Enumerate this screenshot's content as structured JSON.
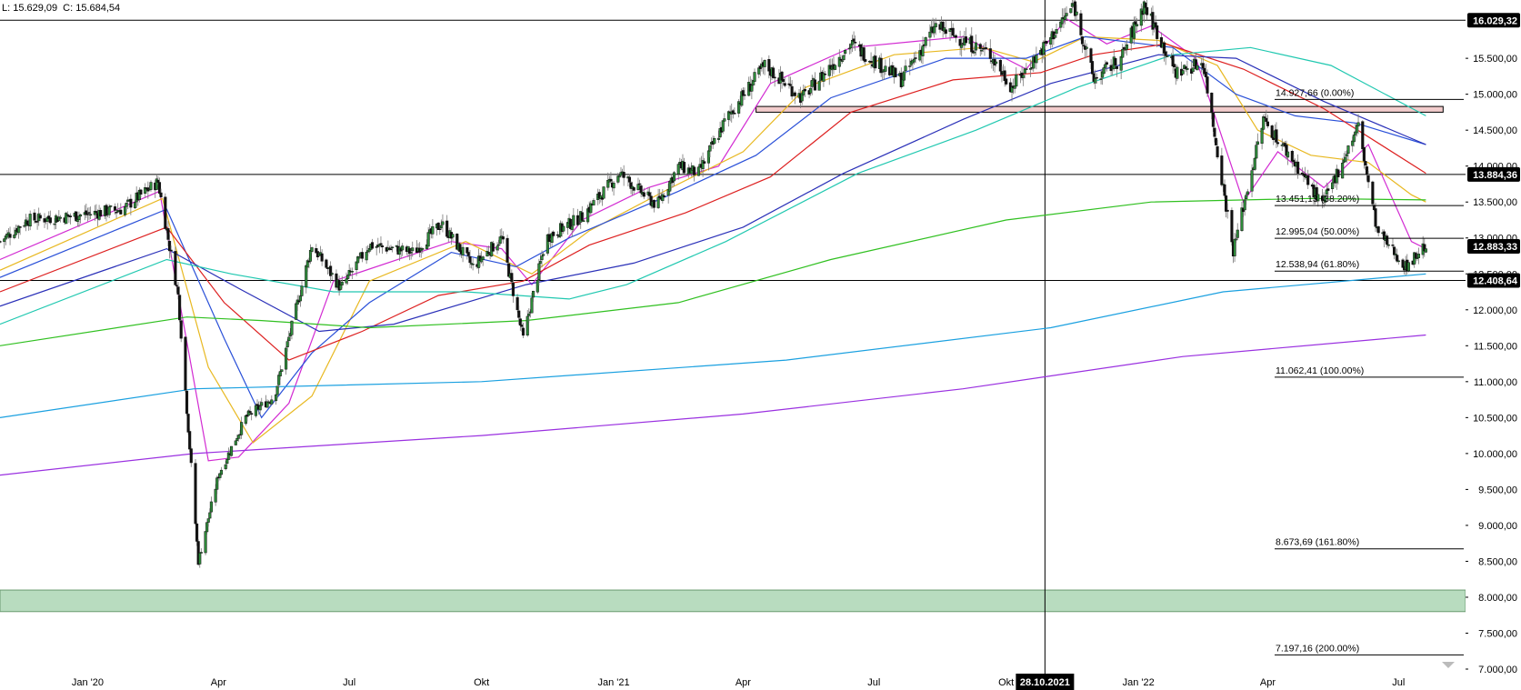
{
  "header": {
    "low": "L: 15.629,09",
    "close": "C: 15.684,54"
  },
  "chart_data": {
    "type": "candlestick",
    "ylim": [
      7000,
      16100
    ],
    "x_range": [
      "2019-11-01",
      "2022-07-28"
    ],
    "y_ticks": [
      7000,
      7500,
      8000,
      8500,
      9000,
      9500,
      10000,
      10500,
      11000,
      11500,
      12000,
      12500,
      13000,
      13500,
      14000,
      14500,
      15000,
      15500
    ],
    "y_tick_labels": [
      "7.000,00",
      "7.500,00",
      "8.000,00",
      "8.500,00",
      "9.000,00",
      "9.500,00",
      "10.000,00",
      "10.500,00",
      "11.000,00",
      "11.500,00",
      "12.000,00",
      "12.500,00",
      "13.000,00",
      "13.500,00",
      "14.000,00",
      "14.500,00",
      "15.000,00",
      "15.500,00"
    ],
    "x_ticks": [
      {
        "date": "2020-01-01",
        "label": "Jan '20"
      },
      {
        "date": "2020-04-01",
        "label": "Apr"
      },
      {
        "date": "2020-07-01",
        "label": "Jul"
      },
      {
        "date": "2020-10-01",
        "label": "Okt"
      },
      {
        "date": "2021-01-01",
        "label": "Jan '21"
      },
      {
        "date": "2021-04-01",
        "label": "Apr"
      },
      {
        "date": "2021-07-01",
        "label": "Jul"
      },
      {
        "date": "2021-10-01",
        "label": "Okt"
      },
      {
        "date": "2022-01-01",
        "label": "Jan '22"
      },
      {
        "date": "2022-04-01",
        "label": "Apr"
      },
      {
        "date": "2022-07-01",
        "label": "Jul"
      }
    ],
    "price_path": [
      [
        "2019-11-01",
        12950
      ],
      [
        "2019-11-20",
        13250
      ],
      [
        "2019-12-20",
        13300
      ],
      [
        "2020-01-25",
        13400
      ],
      [
        "2020-02-19",
        13780
      ],
      [
        "2020-03-04",
        12200
      ],
      [
        "2020-03-18",
        8500
      ],
      [
        "2020-04-01",
        9700
      ],
      [
        "2020-04-20",
        10500
      ],
      [
        "2020-05-10",
        10800
      ],
      [
        "2020-06-05",
        12900
      ],
      [
        "2020-06-25",
        12300
      ],
      [
        "2020-07-15",
        12900
      ],
      [
        "2020-08-15",
        12800
      ],
      [
        "2020-09-03",
        13200
      ],
      [
        "2020-09-25",
        12600
      ],
      [
        "2020-10-15",
        13000
      ],
      [
        "2020-10-30",
        11600
      ],
      [
        "2020-11-15",
        13000
      ],
      [
        "2020-12-10",
        13300
      ],
      [
        "2021-01-05",
        13900
      ],
      [
        "2021-01-31",
        13450
      ],
      [
        "2021-02-15",
        14000
      ],
      [
        "2021-03-01",
        13900
      ],
      [
        "2021-03-20",
        14650
      ],
      [
        "2021-04-16",
        15400
      ],
      [
        "2021-05-12",
        14950
      ],
      [
        "2021-06-15",
        15700
      ],
      [
        "2021-07-20",
        15200
      ],
      [
        "2021-08-13",
        15950
      ],
      [
        "2021-09-20",
        15550
      ],
      [
        "2021-10-05",
        15100
      ],
      [
        "2021-10-29",
        15700
      ],
      [
        "2021-11-17",
        16250
      ],
      [
        "2021-12-01",
        15200
      ],
      [
        "2021-12-20",
        15500
      ],
      [
        "2022-01-05",
        16250
      ],
      [
        "2022-01-27",
        15300
      ],
      [
        "2022-02-15",
        15450
      ],
      [
        "2022-03-08",
        12830
      ],
      [
        "2022-03-29",
        14650
      ],
      [
        "2022-04-25",
        13900
      ],
      [
        "2022-05-09",
        13450
      ],
      [
        "2022-06-03",
        14560
      ],
      [
        "2022-06-16",
        13100
      ],
      [
        "2022-07-06",
        12600
      ],
      [
        "2022-07-20",
        12900
      ]
    ],
    "moving_averages": [
      {
        "color": "#d22ad2",
        "points": [
          [
            "2019-11-01",
            12700
          ],
          [
            "2020-02-20",
            13650
          ],
          [
            "2020-03-25",
            9900
          ],
          [
            "2020-04-15",
            9950
          ],
          [
            "2020-05-20",
            10700
          ],
          [
            "2020-06-20",
            12400
          ],
          [
            "2020-09-10",
            12950
          ],
          [
            "2020-10-15",
            12850
          ],
          [
            "2020-11-05",
            12350
          ],
          [
            "2020-12-10",
            13250
          ],
          [
            "2021-01-25",
            13700
          ],
          [
            "2021-03-15",
            14000
          ],
          [
            "2021-04-20",
            15150
          ],
          [
            "2021-06-15",
            15650
          ],
          [
            "2021-09-01",
            15800
          ],
          [
            "2021-10-15",
            15350
          ],
          [
            "2021-11-12",
            16050
          ],
          [
            "2021-12-10",
            15700
          ],
          [
            "2022-01-10",
            15950
          ],
          [
            "2022-02-10",
            15500
          ],
          [
            "2022-03-15",
            13500
          ],
          [
            "2022-04-08",
            14200
          ],
          [
            "2022-05-10",
            13700
          ],
          [
            "2022-06-10",
            14300
          ],
          [
            "2022-07-10",
            12950
          ],
          [
            "2022-07-20",
            12850
          ]
        ]
      },
      {
        "color": "#e8b820",
        "points": [
          [
            "2019-11-01",
            12550
          ],
          [
            "2020-02-22",
            13550
          ],
          [
            "2020-03-25",
            11200
          ],
          [
            "2020-04-25",
            10150
          ],
          [
            "2020-06-05",
            10800
          ],
          [
            "2020-07-15",
            12400
          ],
          [
            "2020-09-20",
            12950
          ],
          [
            "2020-11-05",
            12500
          ],
          [
            "2020-12-15",
            13100
          ],
          [
            "2021-02-10",
            13700
          ],
          [
            "2021-04-01",
            14200
          ],
          [
            "2021-05-15",
            15100
          ],
          [
            "2021-07-15",
            15550
          ],
          [
            "2021-09-15",
            15650
          ],
          [
            "2021-10-20",
            15450
          ],
          [
            "2021-11-25",
            15800
          ],
          [
            "2022-01-15",
            15750
          ],
          [
            "2022-02-25",
            15400
          ],
          [
            "2022-03-25",
            14500
          ],
          [
            "2022-05-01",
            14150
          ],
          [
            "2022-06-10",
            14050
          ],
          [
            "2022-07-10",
            13600
          ],
          [
            "2022-07-20",
            13500
          ]
        ]
      },
      {
        "color": "#2a50d8",
        "points": [
          [
            "2019-11-01",
            12450
          ],
          [
            "2020-02-25",
            13400
          ],
          [
            "2020-04-05",
            11600
          ],
          [
            "2020-05-01",
            10500
          ],
          [
            "2020-06-05",
            11400
          ],
          [
            "2020-07-15",
            12100
          ],
          [
            "2020-09-10",
            12800
          ],
          [
            "2020-10-25",
            12600
          ],
          [
            "2020-12-01",
            13000
          ],
          [
            "2021-02-15",
            13650
          ],
          [
            "2021-04-10",
            14150
          ],
          [
            "2021-06-01",
            14950
          ],
          [
            "2021-08-20",
            15500
          ],
          [
            "2021-10-15",
            15500
          ],
          [
            "2021-11-25",
            15800
          ],
          [
            "2022-01-25",
            15650
          ],
          [
            "2022-03-10",
            15000
          ],
          [
            "2022-04-20",
            14700
          ],
          [
            "2022-06-01",
            14600
          ],
          [
            "2022-07-20",
            14300
          ]
        ]
      },
      {
        "color": "#dd2020",
        "points": [
          [
            "2019-11-01",
            12250
          ],
          [
            "2020-02-25",
            13150
          ],
          [
            "2020-04-05",
            12100
          ],
          [
            "2020-05-20",
            11300
          ],
          [
            "2020-07-10",
            11700
          ],
          [
            "2020-09-01",
            12200
          ],
          [
            "2020-10-30",
            12400
          ],
          [
            "2020-12-15",
            12900
          ],
          [
            "2021-02-20",
            13350
          ],
          [
            "2021-04-20",
            13850
          ],
          [
            "2021-06-15",
            14750
          ],
          [
            "2021-08-25",
            15200
          ],
          [
            "2021-10-25",
            15300
          ],
          [
            "2021-12-01",
            15550
          ],
          [
            "2022-01-20",
            15700
          ],
          [
            "2022-03-15",
            15350
          ],
          [
            "2022-05-10",
            14800
          ],
          [
            "2022-07-20",
            13900
          ]
        ]
      },
      {
        "color": "#2a30b8",
        "points": [
          [
            "2019-11-01",
            12050
          ],
          [
            "2020-02-25",
            12850
          ],
          [
            "2020-04-15",
            12300
          ],
          [
            "2020-06-10",
            11700
          ],
          [
            "2020-08-01",
            11800
          ],
          [
            "2020-11-01",
            12350
          ],
          [
            "2021-01-15",
            12650
          ],
          [
            "2021-04-01",
            13150
          ],
          [
            "2021-06-10",
            13900
          ],
          [
            "2021-09-01",
            14650
          ],
          [
            "2021-11-01",
            15150
          ],
          [
            "2022-01-15",
            15550
          ],
          [
            "2022-03-10",
            15500
          ],
          [
            "2022-05-10",
            14900
          ],
          [
            "2022-07-20",
            14300
          ]
        ]
      },
      {
        "color": "#20c8b0",
        "points": [
          [
            "2019-11-01",
            11800
          ],
          [
            "2020-02-25",
            12700
          ],
          [
            "2020-04-10",
            12500
          ],
          [
            "2020-06-20",
            12250
          ],
          [
            "2020-09-20",
            12250
          ],
          [
            "2020-12-01",
            12150
          ],
          [
            "2021-01-10",
            12350
          ],
          [
            "2021-03-20",
            12950
          ],
          [
            "2021-06-20",
            13900
          ],
          [
            "2021-09-10",
            14500
          ],
          [
            "2021-11-20",
            15100
          ],
          [
            "2022-01-25",
            15550
          ],
          [
            "2022-03-20",
            15650
          ],
          [
            "2022-05-15",
            15400
          ],
          [
            "2022-07-20",
            14700
          ]
        ]
      },
      {
        "color": "#30c020",
        "points": [
          [
            "2019-11-01",
            11500
          ],
          [
            "2020-03-10",
            11900
          ],
          [
            "2020-05-01",
            11850
          ],
          [
            "2020-07-15",
            11750
          ],
          [
            "2020-11-01",
            11850
          ],
          [
            "2021-02-15",
            12100
          ],
          [
            "2021-06-01",
            12700
          ],
          [
            "2021-10-01",
            13250
          ],
          [
            "2022-01-10",
            13500
          ],
          [
            "2022-05-01",
            13550
          ],
          [
            "2022-07-20",
            13530
          ]
        ]
      },
      {
        "color": "#1aa0e0",
        "points": [
          [
            "2019-11-01",
            10500
          ],
          [
            "2020-03-15",
            10900
          ],
          [
            "2020-10-01",
            11000
          ],
          [
            "2021-05-01",
            11300
          ],
          [
            "2021-11-01",
            11750
          ],
          [
            "2022-03-01",
            12250
          ],
          [
            "2022-07-20",
            12500
          ]
        ]
      },
      {
        "color": "#9a30e0",
        "points": [
          [
            "2019-11-01",
            9700
          ],
          [
            "2020-03-15",
            10000
          ],
          [
            "2020-10-01",
            10250
          ],
          [
            "2021-04-01",
            10550
          ],
          [
            "2021-09-01",
            10900
          ],
          [
            "2022-02-01",
            11350
          ],
          [
            "2022-07-20",
            11650
          ]
        ]
      }
    ],
    "horizontal_lines": [
      {
        "value": 16029.32,
        "label": "16.029,32"
      },
      {
        "value": 13884.36,
        "label": "13.884,36"
      },
      {
        "value": 12408.64,
        "label": "12.408,64"
      }
    ],
    "price_badge": {
      "value": 12883.33,
      "label": "12.883,33"
    },
    "fibonacci": [
      {
        "value": 14927.66,
        "label": "14.927,66 (0.00%)"
      },
      {
        "value": 13451.13,
        "label": "13.451,13 (38.20%)"
      },
      {
        "value": 12995.04,
        "label": "12.995,04 (50.00%)"
      },
      {
        "value": 12538.94,
        "label": "12.538,94 (61.80%)"
      },
      {
        "value": 11062.41,
        "label": "11.062,41 (100.00%)"
      },
      {
        "value": 8673.69,
        "label": "8.673,69 (161.80%)"
      },
      {
        "value": 7197.16,
        "label": "7.197,16 (200.00%)"
      }
    ],
    "zones": [
      {
        "from": 7800,
        "to": 8100,
        "color": "#b8dcbf",
        "start": "2019-11-01",
        "end": "axis"
      },
      {
        "from": 14750,
        "to": 14830,
        "color": "#f2cccc",
        "start": "2021-04-10",
        "end": "2022-08-01"
      }
    ],
    "crosshair": {
      "date": "2021-10-28",
      "label": "28.10.2021"
    }
  }
}
